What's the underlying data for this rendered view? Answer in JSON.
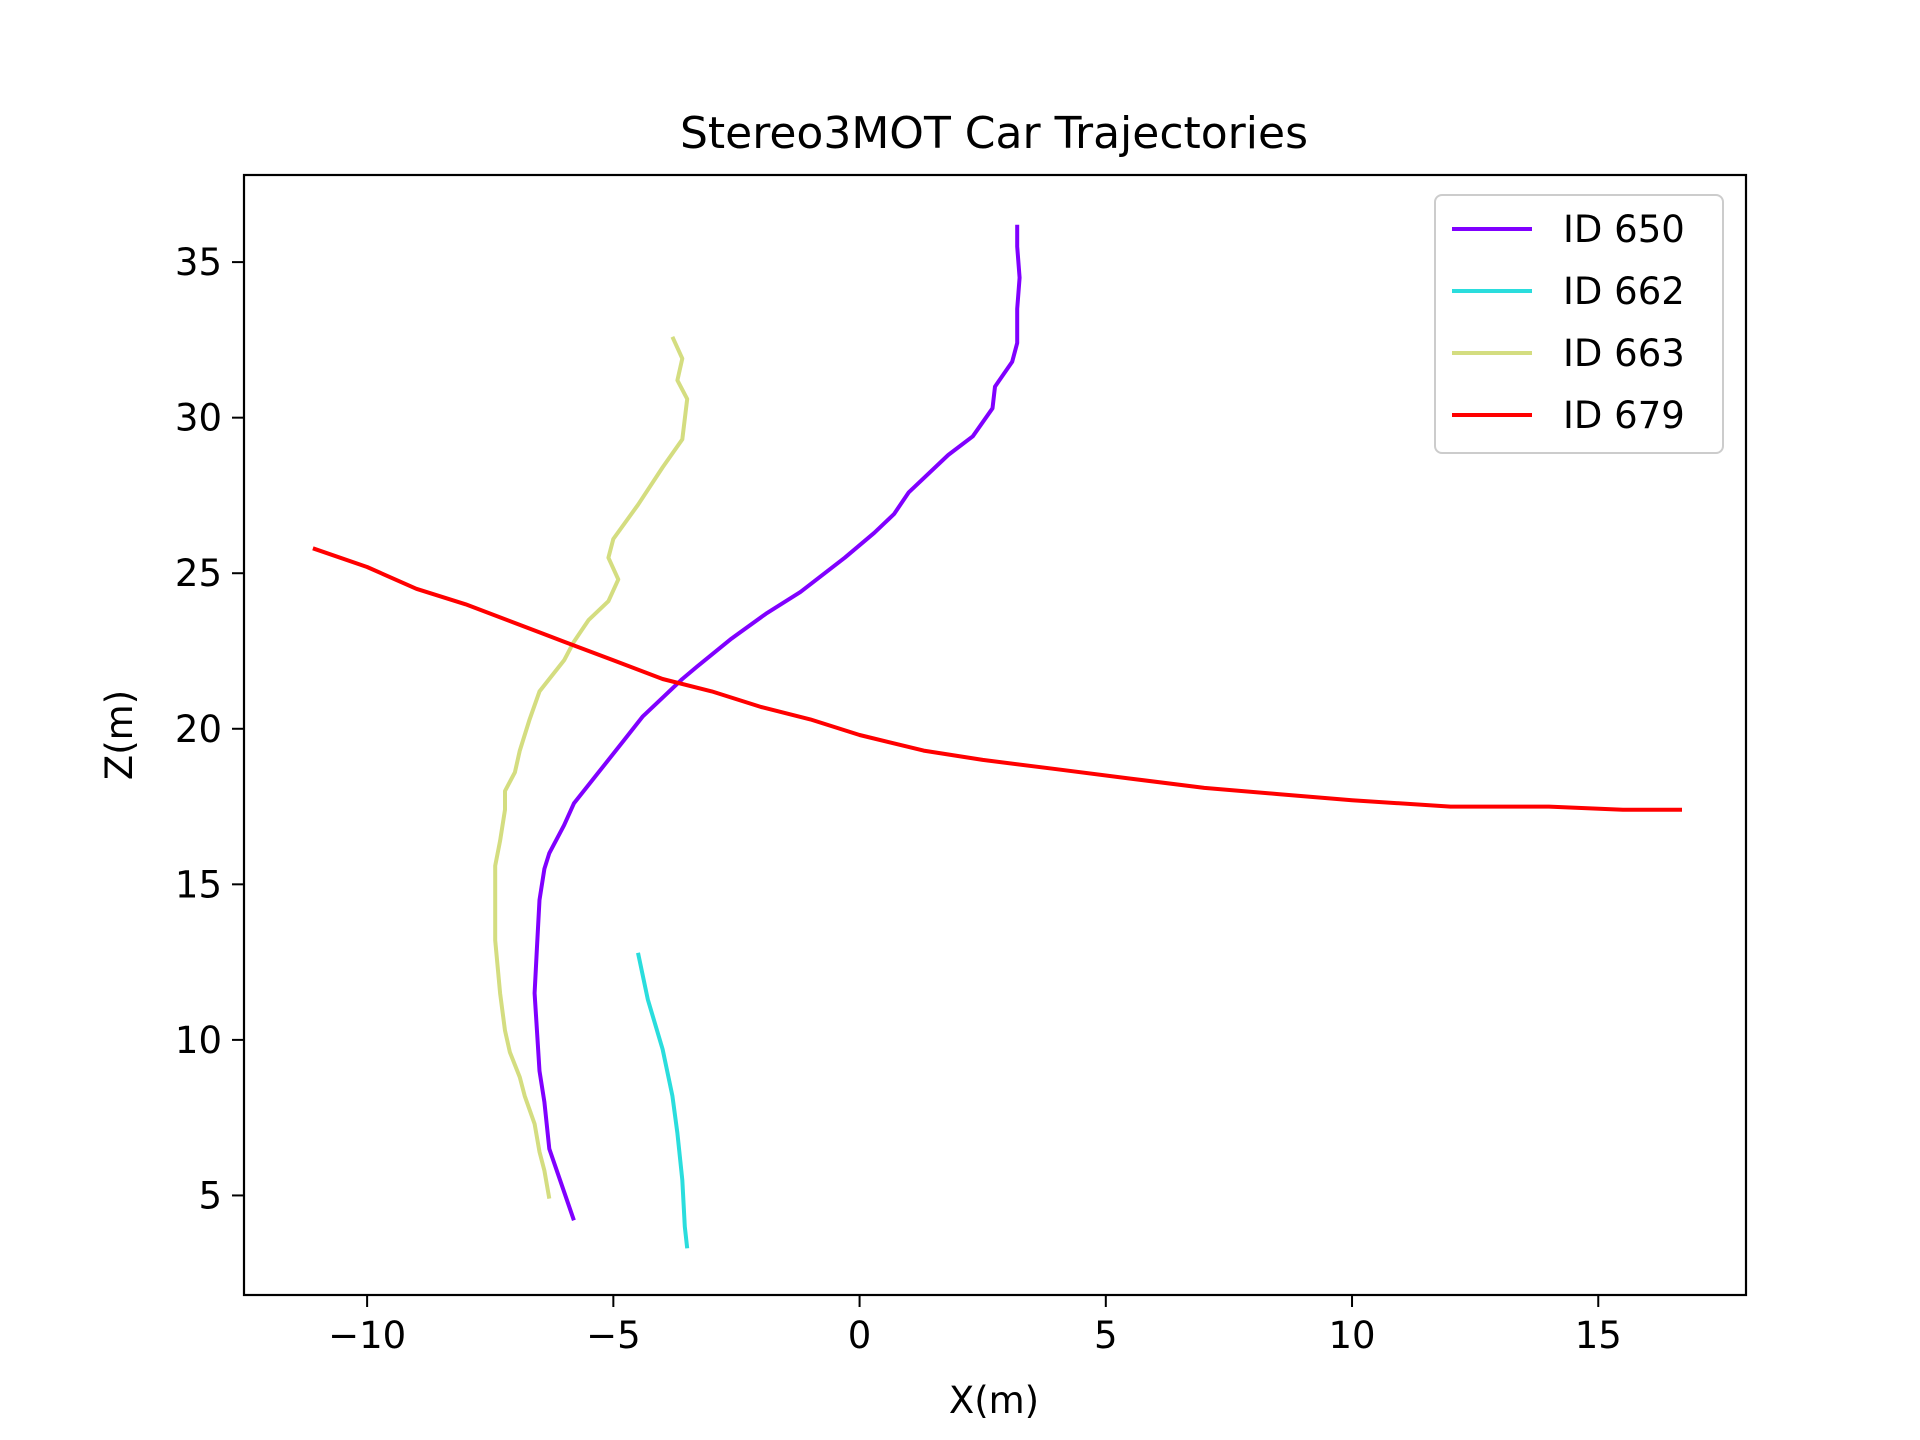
{
  "chart_data": {
    "type": "line",
    "title": "Stereo3MOT Car Trajectories",
    "xlabel": "X(m)",
    "ylabel": "Z(m)",
    "xlim": [
      -12.5,
      18.0
    ],
    "ylim": [
      1.8,
      37.8
    ],
    "xticks": [
      -10,
      -5,
      0,
      5,
      10,
      15
    ],
    "yticks": [
      5,
      10,
      15,
      20,
      25,
      30,
      35
    ],
    "xtick_labels": [
      "−10",
      "−5",
      "0",
      "5",
      "10",
      "15"
    ],
    "ytick_labels": [
      "5",
      "10",
      "15",
      "20",
      "25",
      "30",
      "35"
    ],
    "grid": false,
    "legend_position": "top-right",
    "series": [
      {
        "name": "ID 650",
        "color": "#8000ff",
        "points": [
          [
            3.2,
            36.2
          ],
          [
            3.2,
            35.5
          ],
          [
            3.25,
            34.5
          ],
          [
            3.2,
            33.5
          ],
          [
            3.2,
            32.4
          ],
          [
            3.1,
            31.8
          ],
          [
            2.75,
            31.0
          ],
          [
            2.7,
            30.3
          ],
          [
            2.3,
            29.4
          ],
          [
            1.8,
            28.8
          ],
          [
            1.0,
            27.6
          ],
          [
            0.7,
            26.9
          ],
          [
            0.3,
            26.3
          ],
          [
            -0.3,
            25.5
          ],
          [
            -1.2,
            24.4
          ],
          [
            -1.9,
            23.7
          ],
          [
            -2.6,
            22.9
          ],
          [
            -3.3,
            22.0
          ],
          [
            -3.6,
            21.6
          ],
          [
            -4.0,
            21.0
          ],
          [
            -4.4,
            20.4
          ],
          [
            -4.8,
            19.6
          ],
          [
            -5.3,
            18.6
          ],
          [
            -5.8,
            17.6
          ],
          [
            -6.0,
            16.9
          ],
          [
            -6.3,
            16.0
          ],
          [
            -6.4,
            15.5
          ],
          [
            -6.5,
            14.5
          ],
          [
            -6.55,
            13.0
          ],
          [
            -6.6,
            11.5
          ],
          [
            -6.5,
            9.0
          ],
          [
            -6.4,
            8.0
          ],
          [
            -6.3,
            6.5
          ],
          [
            -5.8,
            4.2
          ]
        ]
      },
      {
        "name": "ID 662",
        "color": "#2adddd",
        "points": [
          [
            -4.5,
            12.8
          ],
          [
            -4.3,
            11.3
          ],
          [
            -4.0,
            9.7
          ],
          [
            -3.8,
            8.2
          ],
          [
            -3.7,
            7.0
          ],
          [
            -3.6,
            5.5
          ],
          [
            -3.55,
            4.0
          ],
          [
            -3.5,
            3.3
          ]
        ]
      },
      {
        "name": "ID 663",
        "color": "#d4dd80",
        "points": [
          [
            -3.8,
            32.6
          ],
          [
            -3.6,
            31.9
          ],
          [
            -3.7,
            31.2
          ],
          [
            -3.5,
            30.6
          ],
          [
            -3.6,
            29.3
          ],
          [
            -4.0,
            28.4
          ],
          [
            -4.5,
            27.2
          ],
          [
            -5.0,
            26.1
          ],
          [
            -5.1,
            25.5
          ],
          [
            -4.9,
            24.8
          ],
          [
            -5.1,
            24.1
          ],
          [
            -5.5,
            23.5
          ],
          [
            -5.8,
            22.8
          ],
          [
            -6.0,
            22.2
          ],
          [
            -6.5,
            21.2
          ],
          [
            -6.7,
            20.3
          ],
          [
            -6.9,
            19.3
          ],
          [
            -7.0,
            18.6
          ],
          [
            -7.2,
            18.0
          ],
          [
            -7.2,
            17.4
          ],
          [
            -7.3,
            16.4
          ],
          [
            -7.4,
            15.6
          ],
          [
            -7.4,
            14.6
          ],
          [
            -7.4,
            13.2
          ],
          [
            -7.3,
            11.5
          ],
          [
            -7.2,
            10.3
          ],
          [
            -7.1,
            9.6
          ],
          [
            -6.9,
            8.8
          ],
          [
            -6.8,
            8.2
          ],
          [
            -6.6,
            7.3
          ],
          [
            -6.5,
            6.4
          ],
          [
            -6.4,
            5.8
          ],
          [
            -6.3,
            4.9
          ]
        ]
      },
      {
        "name": "ID 679",
        "color": "#ff0000",
        "points": [
          [
            -11.1,
            25.8
          ],
          [
            -10.0,
            25.2
          ],
          [
            -9.0,
            24.5
          ],
          [
            -8.0,
            24.0
          ],
          [
            -7.0,
            23.4
          ],
          [
            -6.0,
            22.8
          ],
          [
            -5.0,
            22.2
          ],
          [
            -4.0,
            21.6
          ],
          [
            -3.0,
            21.2
          ],
          [
            -2.0,
            20.7
          ],
          [
            -1.0,
            20.3
          ],
          [
            0.0,
            19.8
          ],
          [
            1.3,
            19.3
          ],
          [
            2.5,
            19.0
          ],
          [
            4.0,
            18.7
          ],
          [
            5.5,
            18.4
          ],
          [
            7.0,
            18.1
          ],
          [
            8.5,
            17.9
          ],
          [
            10.0,
            17.7
          ],
          [
            12.0,
            17.5
          ],
          [
            14.0,
            17.5
          ],
          [
            15.5,
            17.4
          ],
          [
            16.7,
            17.4
          ]
        ]
      }
    ]
  }
}
